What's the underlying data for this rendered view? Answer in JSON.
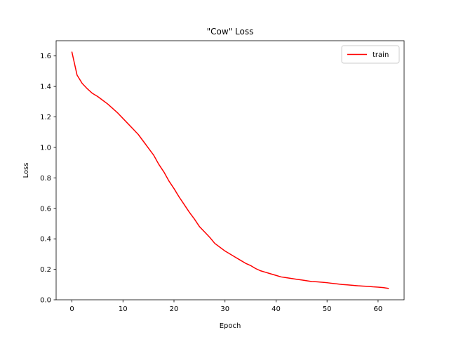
{
  "chart_data": {
    "type": "line",
    "title": "\"Cow\" Loss",
    "xlabel": "Epoch",
    "ylabel": "Loss",
    "xlim": [
      -3.1,
      65.1
    ],
    "ylim": [
      0.0,
      1.7
    ],
    "xticks": [
      0,
      10,
      20,
      30,
      40,
      50,
      60
    ],
    "yticks": [
      0.0,
      0.2,
      0.4,
      0.6,
      0.8,
      1.0,
      1.2,
      1.4,
      1.6
    ],
    "grid": false,
    "legend_position": "top-right",
    "series": [
      {
        "name": "train",
        "color": "#ff0000",
        "x": [
          0,
          1,
          2,
          3,
          4,
          5,
          6,
          7,
          8,
          9,
          10,
          11,
          12,
          13,
          14,
          15,
          16,
          17,
          18,
          19,
          20,
          21,
          22,
          23,
          24,
          25,
          26,
          27,
          28,
          29,
          30,
          31,
          32,
          33,
          34,
          35,
          36,
          37,
          38,
          39,
          40,
          41,
          42,
          43,
          44,
          45,
          46,
          47,
          48,
          49,
          50,
          51,
          52,
          53,
          54,
          55,
          56,
          57,
          58,
          59,
          60,
          61,
          62
        ],
        "y": [
          1.625,
          1.475,
          1.42,
          1.385,
          1.355,
          1.335,
          1.31,
          1.285,
          1.255,
          1.225,
          1.19,
          1.155,
          1.12,
          1.085,
          1.04,
          0.995,
          0.95,
          0.89,
          0.84,
          0.78,
          0.73,
          0.675,
          0.625,
          0.575,
          0.53,
          0.48,
          0.445,
          0.41,
          0.37,
          0.345,
          0.32,
          0.3,
          0.28,
          0.26,
          0.24,
          0.225,
          0.205,
          0.19,
          0.18,
          0.17,
          0.16,
          0.15,
          0.145,
          0.14,
          0.135,
          0.13,
          0.125,
          0.12,
          0.118,
          0.115,
          0.112,
          0.108,
          0.104,
          0.1,
          0.098,
          0.095,
          0.092,
          0.09,
          0.088,
          0.085,
          0.083,
          0.08,
          0.075
        ]
      }
    ]
  }
}
